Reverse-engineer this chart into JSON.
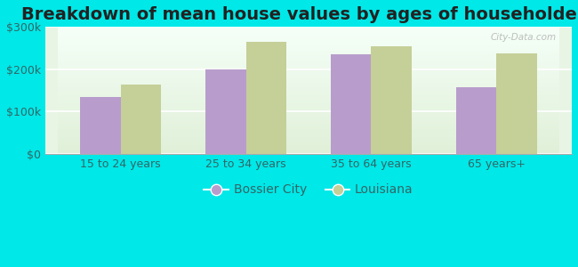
{
  "title": "Breakdown of mean house values by ages of householders",
  "categories": [
    "15 to 24 years",
    "25 to 34 years",
    "35 to 64 years",
    "65 years+"
  ],
  "bossier_city": [
    135000,
    200000,
    235000,
    158000
  ],
  "louisiana": [
    163000,
    265000,
    255000,
    238000
  ],
  "bar_color_bossier": "#b89dcc",
  "bar_color_louisiana": "#c5cf98",
  "background_color": "#00e8e8",
  "plot_bg_color": "#e8f5e4",
  "ylim": [
    0,
    300000
  ],
  "yticks": [
    0,
    100000,
    200000,
    300000
  ],
  "ytick_labels": [
    "$0",
    "$100k",
    "$200k",
    "$300k"
  ],
  "legend_labels": [
    "Bossier City",
    "Louisiana"
  ],
  "title_fontsize": 14,
  "tick_fontsize": 9,
  "legend_fontsize": 10,
  "bar_width": 0.32,
  "watermark_text": "City-Data.com"
}
